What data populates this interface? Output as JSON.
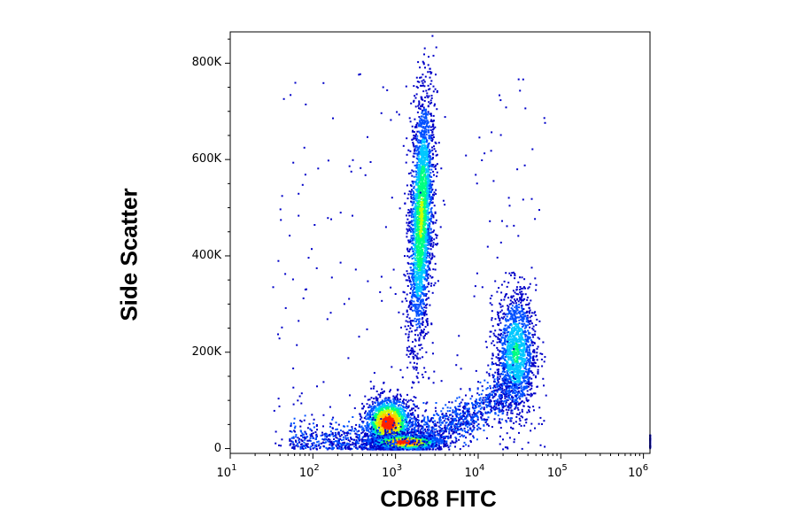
{
  "chart_data": {
    "type": "scatter",
    "xlabel": "CD68 FITC",
    "ylabel": "Side Scatter",
    "x_scale": "log",
    "xlim": [
      10,
      1200000
    ],
    "ylim": [
      -10000,
      865000
    ],
    "x_ticks": [
      {
        "value": 10,
        "base": "10",
        "exp": "1"
      },
      {
        "value": 100,
        "base": "10",
        "exp": "2"
      },
      {
        "value": 1000,
        "base": "10",
        "exp": "3"
      },
      {
        "value": 10000,
        "base": "10",
        "exp": "4"
      },
      {
        "value": 100000,
        "base": "10",
        "exp": "5"
      },
      {
        "value": 1000000,
        "base": "10",
        "exp": "6"
      }
    ],
    "y_ticks": [
      {
        "value": 0,
        "label": "0"
      },
      {
        "value": 200000,
        "label": "200K"
      },
      {
        "value": 400000,
        "label": "400K"
      },
      {
        "value": 600000,
        "label": "600K"
      },
      {
        "value": 800000,
        "label": "800K"
      }
    ],
    "density_colormap": [
      "#0000c8",
      "#0050ff",
      "#00c8ff",
      "#00ff80",
      "#c8ff00",
      "#ffc800",
      "#ff2000"
    ],
    "populations": [
      {
        "name": "high-SSC population",
        "x_center": 2000,
        "y_center": 480000,
        "x_sd_log10": 0.07,
        "y_sd": 130000,
        "tilt_log10_per_100k": 0.02,
        "peak_density": 0.6
      },
      {
        "name": "low-SSC population",
        "x_center": 800,
        "y_center": 55000,
        "x_sd_log10": 0.14,
        "y_sd": 25000,
        "peak_density": 1.0
      },
      {
        "name": "baseline population",
        "x_center": 1300,
        "y_center": 15000,
        "x_sd_log10": 0.22,
        "y_sd": 8000,
        "peak_density": 1.0
      },
      {
        "name": "CD68 positive population",
        "x_center": 28000,
        "y_center": 200000,
        "x_sd_log10": 0.12,
        "y_sd": 65000,
        "peak_density": 0.45
      },
      {
        "name": "connecting band",
        "x_from": 1500,
        "x_to": 25000,
        "y_from": 30000,
        "y_to": 130000,
        "peak_density": 0.25
      }
    ]
  }
}
